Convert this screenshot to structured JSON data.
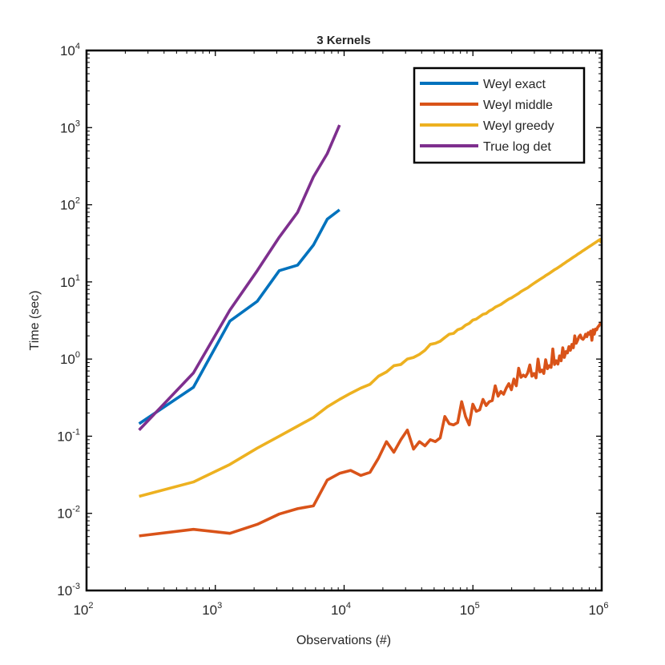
{
  "chart_data": {
    "type": "line",
    "title": "3 Kernels",
    "xlabel": "Observations (#)",
    "ylabel": "Time (sec)",
    "xscale": "log",
    "yscale": "log",
    "xlim": [
      100,
      1000000
    ],
    "ylim": [
      0.001,
      10000
    ],
    "grid": false,
    "legend_position": "top-right",
    "x_ticks": [
      {
        "value": 100,
        "base": "10",
        "exp": "2"
      },
      {
        "value": 1000,
        "base": "10",
        "exp": "3"
      },
      {
        "value": 10000,
        "base": "10",
        "exp": "4"
      },
      {
        "value": 100000,
        "base": "10",
        "exp": "5"
      },
      {
        "value": 1000000,
        "base": "10",
        "exp": "6"
      }
    ],
    "y_ticks": [
      {
        "value": 0.001,
        "base": "10",
        "exp": "-3"
      },
      {
        "value": 0.01,
        "base": "10",
        "exp": "-2"
      },
      {
        "value": 0.1,
        "base": "10",
        "exp": "-1"
      },
      {
        "value": 1,
        "base": "10",
        "exp": "0"
      },
      {
        "value": 10,
        "base": "10",
        "exp": "1"
      },
      {
        "value": 100,
        "base": "10",
        "exp": "2"
      },
      {
        "value": 1000,
        "base": "10",
        "exp": "3"
      },
      {
        "value": 10000,
        "base": "10",
        "exp": "4"
      }
    ],
    "series": [
      {
        "name": "Weyl exact",
        "color": "#0072BD",
        "x": [
          256,
          676,
          1296,
          2116,
          3136,
          4356,
          5776,
          7396,
          9216
        ],
        "y": [
          0.145,
          0.43,
          3.1,
          5.6,
          14,
          16.5,
          30,
          65,
          86
        ]
      },
      {
        "name": "Weyl middle",
        "color": "#D95319",
        "x": [
          256,
          676,
          1296,
          2116,
          3136,
          4356,
          5776,
          7396,
          9216,
          11236,
          13456,
          15876,
          18496,
          21316,
          24336,
          27556,
          30976,
          34596,
          38416,
          42436,
          46656,
          51076,
          55696,
          60516,
          65536,
          70756,
          76176,
          81796,
          87616,
          93636,
          99856,
          106276,
          112896,
          119716,
          126736,
          133956,
          141376,
          148996,
          156816,
          164836,
          173056,
          181476,
          190096,
          198916,
          207936,
          217156,
          226576,
          236196,
          246016,
          256036,
          266256,
          276676,
          287296,
          298116,
          309136,
          320356,
          331776,
          343396,
          355216,
          367236,
          379456,
          391876,
          404496,
          417316,
          430336,
          443556,
          456976,
          470596,
          484416,
          498436,
          512656,
          527076,
          541696,
          556516,
          571536,
          586756,
          602176,
          617796,
          633616,
          649636,
          665856,
          682276,
          698896,
          715716,
          732736,
          749956,
          767376,
          784996,
          802816,
          820836,
          839056,
          857476,
          876096,
          894916,
          913936,
          933156,
          952576,
          972196,
          992016
        ],
        "y": [
          0.0051,
          0.0062,
          0.0055,
          0.0072,
          0.0098,
          0.0115,
          0.0125,
          0.027,
          0.033,
          0.036,
          0.031,
          0.034,
          0.052,
          0.085,
          0.062,
          0.09,
          0.12,
          0.068,
          0.085,
          0.075,
          0.09,
          0.085,
          0.095,
          0.18,
          0.145,
          0.14,
          0.15,
          0.28,
          0.18,
          0.14,
          0.26,
          0.21,
          0.22,
          0.3,
          0.25,
          0.28,
          0.29,
          0.45,
          0.33,
          0.38,
          0.35,
          0.42,
          0.48,
          0.4,
          0.55,
          0.45,
          0.76,
          0.58,
          0.62,
          0.59,
          0.66,
          0.84,
          0.6,
          0.65,
          0.57,
          1.0,
          0.68,
          0.72,
          0.65,
          0.98,
          0.75,
          0.82,
          0.78,
          1.35,
          0.85,
          0.95,
          0.86,
          1.1,
          0.95,
          1.4,
          1.05,
          1.25,
          1.2,
          1.45,
          1.3,
          1.55,
          1.4,
          2.0,
          1.6,
          1.75,
          1.95,
          2.05,
          1.85,
          1.8,
          1.9,
          2.1,
          1.95,
          2.2,
          2.1,
          2.3,
          1.75,
          2.4,
          2.1,
          2.45,
          2.4,
          2.6,
          2.7,
          2.85,
          3.0
        ]
      },
      {
        "name": "Weyl greedy",
        "color": "#EDB120",
        "x": [
          256,
          676,
          1296,
          2116,
          3136,
          4356,
          5776,
          7396,
          9216,
          11236,
          13456,
          15876,
          18496,
          21316,
          24336,
          27556,
          30976,
          34596,
          38416,
          42436,
          46656,
          51076,
          55696,
          60516,
          65536,
          70756,
          76176,
          81796,
          87616,
          93636,
          99856,
          106276,
          112896,
          119716,
          126736,
          133956,
          141376,
          148996,
          156816,
          164836,
          173056,
          181476,
          190096,
          198916,
          207936,
          217156,
          226576,
          236196,
          246016,
          256036,
          266256,
          276676,
          287296,
          298116,
          309136,
          320356,
          331776,
          343396,
          355216,
          367236,
          379456,
          391876,
          404496,
          417316,
          430336,
          443556,
          456976,
          470596,
          484416,
          498436,
          512656,
          527076,
          541696,
          556516,
          571536,
          586756,
          602176,
          617796,
          633616,
          649636,
          665856,
          682276,
          698896,
          715716,
          732736,
          749956,
          767376,
          784996,
          802816,
          820836,
          839056,
          857476,
          876096,
          894916,
          913936,
          933156,
          952576,
          972196,
          992016
        ],
        "y": [
          0.0166,
          0.0255,
          0.043,
          0.07,
          0.1,
          0.135,
          0.175,
          0.24,
          0.3,
          0.36,
          0.42,
          0.47,
          0.6,
          0.68,
          0.82,
          0.85,
          1.0,
          1.05,
          1.15,
          1.3,
          1.55,
          1.6,
          1.7,
          1.9,
          2.1,
          2.15,
          2.4,
          2.5,
          2.75,
          2.9,
          3.2,
          3.3,
          3.55,
          3.8,
          3.9,
          4.2,
          4.4,
          4.7,
          4.9,
          5.1,
          5.4,
          5.7,
          6.0,
          6.2,
          6.5,
          6.8,
          7.1,
          7.5,
          7.8,
          8.1,
          8.4,
          8.8,
          9.2,
          9.6,
          10.0,
          10.4,
          10.8,
          11.2,
          11.6,
          12.1,
          12.5,
          12.9,
          13.4,
          13.9,
          14.4,
          14.8,
          15.3,
          15.8,
          16.3,
          16.9,
          17.4,
          18.0,
          18.6,
          19.1,
          19.7,
          20.3,
          20.9,
          21.5,
          22.1,
          22.8,
          23.4,
          24.0,
          24.7,
          25.4,
          26.0,
          26.7,
          27.4,
          28.1,
          28.8,
          29.5,
          30.2,
          31.0,
          31.7,
          32.4,
          33.2,
          34.0,
          34.7,
          35.5,
          32.0
        ]
      },
      {
        "name": "True log det",
        "color": "#7E2F8E",
        "x": [
          256,
          676,
          1296,
          2116,
          3136,
          4356,
          5776,
          7396,
          9216
        ],
        "y": [
          0.12,
          0.66,
          4.3,
          14,
          38,
          80,
          230,
          460,
          1080
        ]
      }
    ]
  }
}
